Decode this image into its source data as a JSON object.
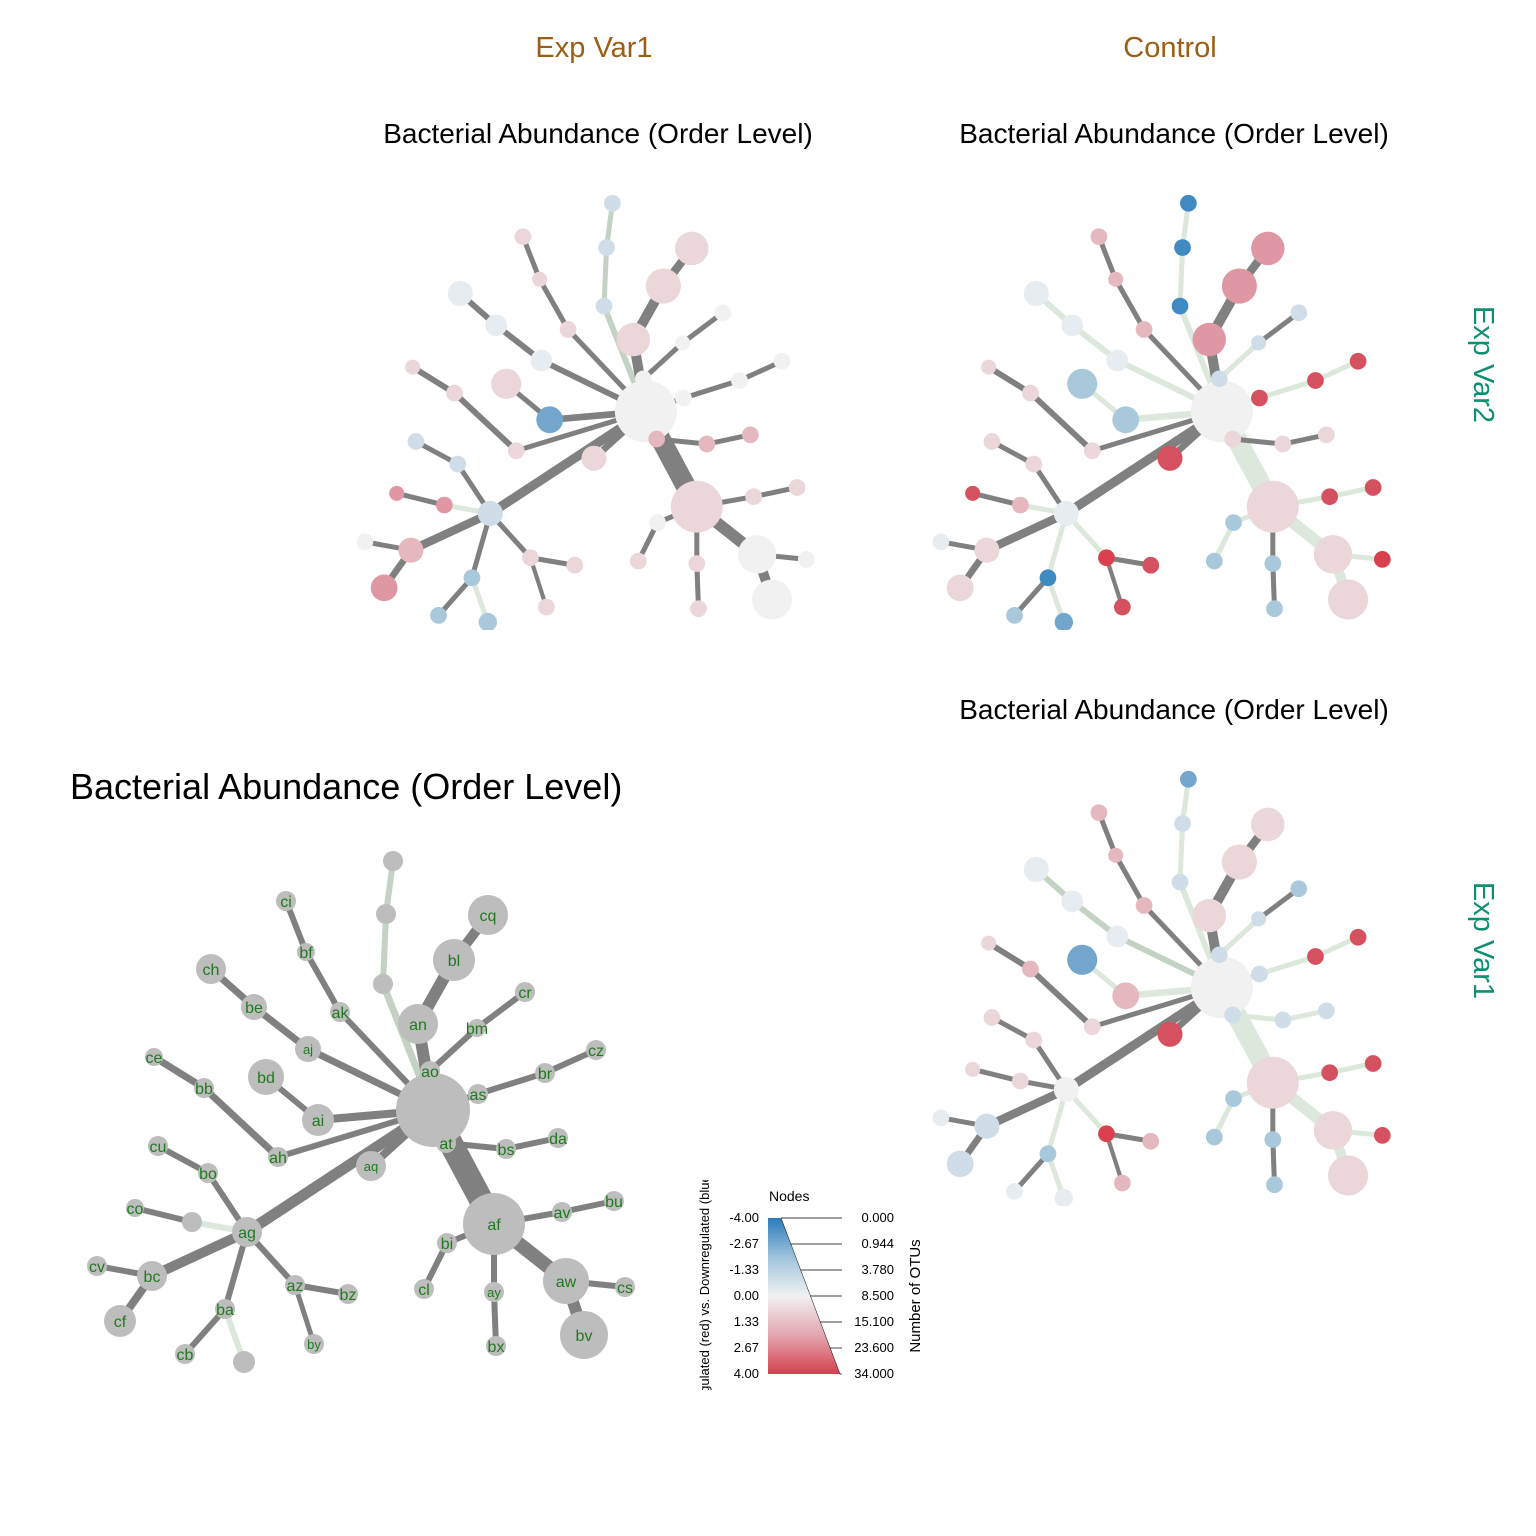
{
  "columns": [
    "Exp Var1",
    "Control"
  ],
  "rows": [
    "Exp Var2",
    "Exp Var1"
  ],
  "panels": {
    "top_left_title": "Bacterial Abundance (Order Level)",
    "top_right_title": "Bacterial Abundance (Order Level)",
    "bottom_right_title": "Bacterial Abundance (Order Level)",
    "key_title": "Bacterial Abundance (Order Level)"
  },
  "key_labels": [
    "cq",
    "ci",
    "bf",
    "bl",
    "ch",
    "cr",
    "be",
    "ak",
    "an",
    "bm",
    "aj",
    "ce",
    "bd",
    "ao",
    "cz",
    "bb",
    "ai",
    "br",
    "as",
    "ah",
    "at",
    "da",
    "cu",
    "aq",
    "bs",
    "bo",
    "co",
    "ag",
    "bu",
    "av",
    "af",
    "bi",
    "cv",
    "bc",
    "az",
    "bz",
    "aw",
    "cl",
    "cs",
    "ay",
    "ba",
    "cf",
    "by",
    "bv",
    "cb",
    "bx"
  ],
  "legend": {
    "title": "Nodes",
    "color_axis_label": "Upregulated (red) vs. Downregulated (blue)",
    "color_ticks": [
      "-4.00",
      "-2.67",
      "-1.33",
      "0.00",
      "1.33",
      "2.67",
      "4.00"
    ],
    "size_axis_label": "Number of OTUs",
    "size_ticks": [
      "0.000",
      "0.944",
      "3.780",
      "8.500",
      "15.100",
      "23.600",
      "34.000"
    ],
    "colors": {
      "up": "#d6404e",
      "mid": "#f1f1f1",
      "down": "#2b7bba"
    }
  }
}
